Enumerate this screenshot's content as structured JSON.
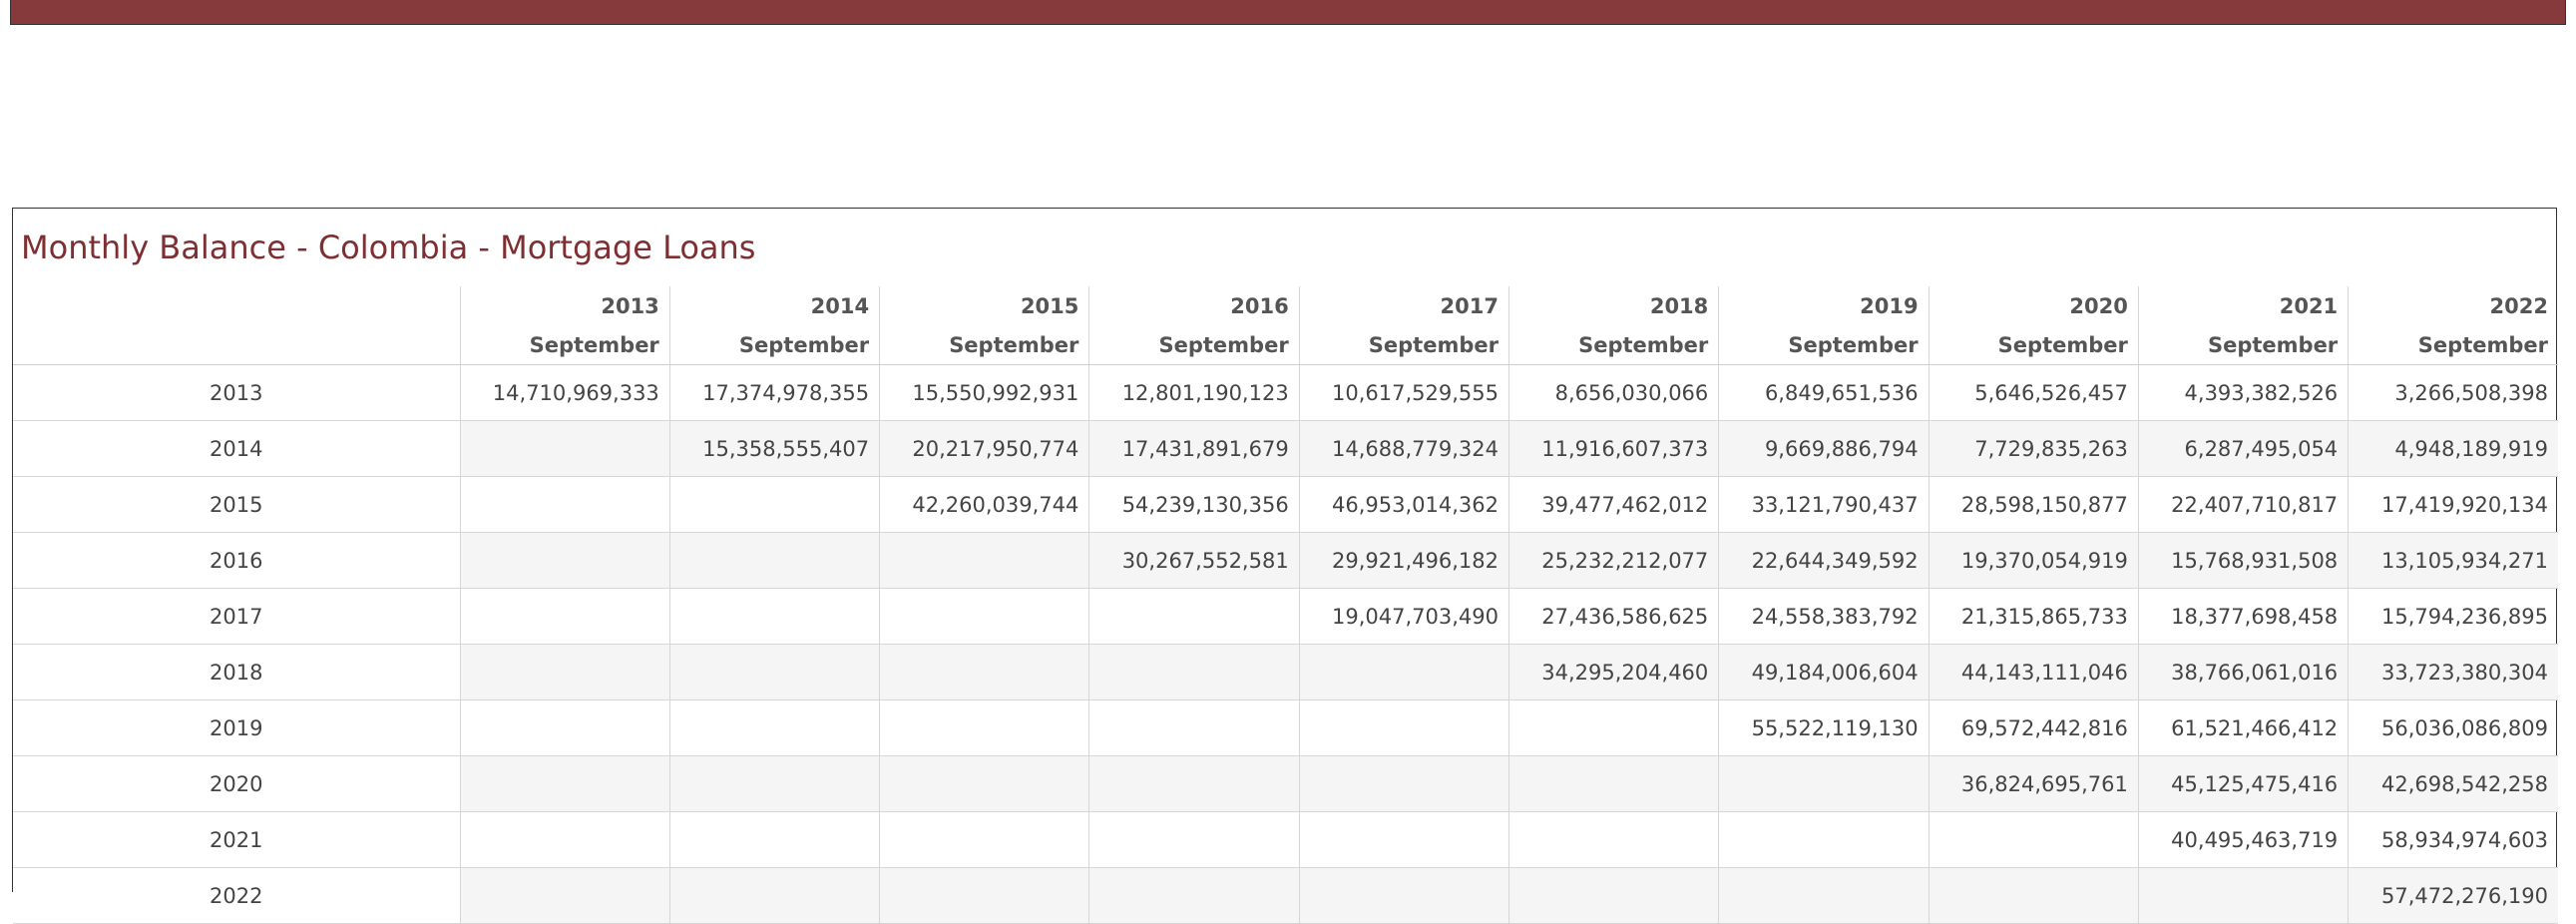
{
  "table": {
    "title": "Monthly Balance - Colombia - Mortgage Loans",
    "columns": [
      {
        "year": "2013",
        "month": "September"
      },
      {
        "year": "2014",
        "month": "September"
      },
      {
        "year": "2015",
        "month": "September"
      },
      {
        "year": "2016",
        "month": "September"
      },
      {
        "year": "2017",
        "month": "September"
      },
      {
        "year": "2018",
        "month": "September"
      },
      {
        "year": "2019",
        "month": "September"
      },
      {
        "year": "2020",
        "month": "September"
      },
      {
        "year": "2021",
        "month": "September"
      },
      {
        "year": "2022",
        "month": "September"
      }
    ],
    "rows": [
      {
        "label": "2013",
        "values": [
          "14,710,969,333",
          "17,374,978,355",
          "15,550,992,931",
          "12,801,190,123",
          "10,617,529,555",
          "8,656,030,066",
          "6,849,651,536",
          "5,646,526,457",
          "4,393,382,526",
          "3,266,508,398"
        ]
      },
      {
        "label": "2014",
        "values": [
          null,
          "15,358,555,407",
          "20,217,950,774",
          "17,431,891,679",
          "14,688,779,324",
          "11,916,607,373",
          "9,669,886,794",
          "7,729,835,263",
          "6,287,495,054",
          "4,948,189,919"
        ]
      },
      {
        "label": "2015",
        "values": [
          null,
          null,
          "42,260,039,744",
          "54,239,130,356",
          "46,953,014,362",
          "39,477,462,012",
          "33,121,790,437",
          "28,598,150,877",
          "22,407,710,817",
          "17,419,920,134"
        ]
      },
      {
        "label": "2016",
        "values": [
          null,
          null,
          null,
          "30,267,552,581",
          "29,921,496,182",
          "25,232,212,077",
          "22,644,349,592",
          "19,370,054,919",
          "15,768,931,508",
          "13,105,934,271"
        ]
      },
      {
        "label": "2017",
        "values": [
          null,
          null,
          null,
          null,
          "19,047,703,490",
          "27,436,586,625",
          "24,558,383,792",
          "21,315,865,733",
          "18,377,698,458",
          "15,794,236,895"
        ]
      },
      {
        "label": "2018",
        "values": [
          null,
          null,
          null,
          null,
          null,
          "34,295,204,460",
          "49,184,006,604",
          "44,143,111,046",
          "38,766,061,016",
          "33,723,380,304"
        ]
      },
      {
        "label": "2019",
        "values": [
          null,
          null,
          null,
          null,
          null,
          null,
          "55,522,119,130",
          "69,572,442,816",
          "61,521,466,412",
          "56,036,086,809"
        ]
      },
      {
        "label": "2020",
        "values": [
          null,
          null,
          null,
          null,
          null,
          null,
          null,
          "36,824,695,761",
          "45,125,475,416",
          "42,698,542,258"
        ]
      },
      {
        "label": "2021",
        "values": [
          null,
          null,
          null,
          null,
          null,
          null,
          null,
          null,
          "40,495,463,719",
          "58,934,974,603"
        ]
      },
      {
        "label": "2022",
        "values": [
          null,
          null,
          null,
          null,
          null,
          null,
          null,
          null,
          null,
          "57,472,276,190"
        ]
      }
    ]
  }
}
